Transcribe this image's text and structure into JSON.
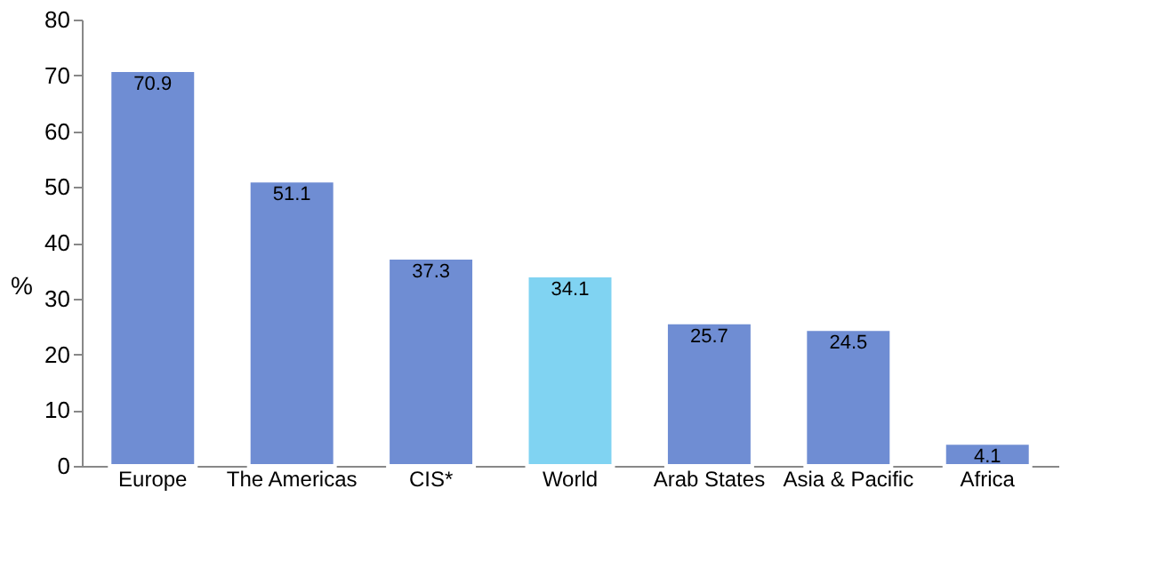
{
  "chart_data": {
    "type": "bar",
    "categories": [
      "Europe",
      "The Americas",
      "CIS*",
      "World",
      "Arab States",
      "Asia & Pacific",
      "Africa"
    ],
    "values": [
      70.9,
      51.1,
      37.3,
      34.1,
      25.7,
      24.5,
      4.1
    ],
    "colors": [
      "#6f8dd3",
      "#6f8dd3",
      "#6f8dd3",
      "#80d3f2",
      "#6f8dd3",
      "#6f8dd3",
      "#6f8dd3"
    ],
    "ylabel": "%",
    "ylim": [
      0,
      80
    ],
    "yticks": [
      0,
      10,
      20,
      30,
      40,
      50,
      60,
      70,
      80
    ],
    "grid": false,
    "data_labels": true
  }
}
